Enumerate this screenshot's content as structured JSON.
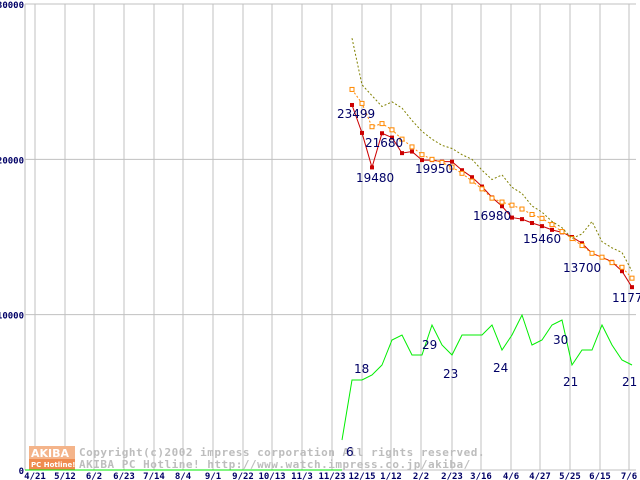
{
  "chart_data": {
    "type": "line",
    "title": "",
    "xlabel": "",
    "ylabel": "",
    "ylim": [
      0,
      30000
    ],
    "yticks": [
      "0",
      "10000",
      "20000",
      "30000"
    ],
    "ytick_values": [
      0,
      10000,
      20000,
      30000
    ],
    "x_tick_labels": [
      "4/21",
      "5/12",
      "6/2",
      "6/23",
      "7/14",
      "8/4",
      "9/1",
      "9/22",
      "10/13",
      "11/3",
      "11/23",
      "12/15",
      "1/12",
      "2/2",
      "2/23",
      "3/16",
      "4/6",
      "4/27",
      "5/25",
      "6/15",
      "7/6"
    ],
    "grid": true,
    "x_week_index_start": 33,
    "series": [
      {
        "name": "average-price",
        "color": "#cc0000",
        "marker": "filled-square",
        "values": [
          23499,
          21700,
          19480,
          21680,
          21400,
          20400,
          20500,
          19950,
          19950,
          19850,
          19850,
          19300,
          18850,
          18250,
          17550,
          16980,
          16250,
          16150,
          15900,
          15700,
          15460,
          15300,
          15000,
          14600,
          13950,
          13700,
          13400,
          12800,
          11770
        ]
      },
      {
        "name": "orange-dotted",
        "color": "#ff8800",
        "marker": "open-square",
        "values": [
          24500,
          23600,
          22100,
          22300,
          21900,
          21300,
          20800,
          20300,
          20000,
          19800,
          19500,
          19100,
          18600,
          18100,
          17500,
          17250,
          17050,
          16800,
          16450,
          16200,
          15800,
          15350,
          14900,
          14450,
          13950,
          13700,
          13350,
          13050,
          12350
        ]
      },
      {
        "name": "olive-dotted",
        "color": "#808000",
        "marker": "none",
        "values": [
          27800,
          24800,
          24100,
          23400,
          23700,
          23300,
          22500,
          21800,
          21300,
          20900,
          20700,
          20300,
          20000,
          19300,
          18700,
          19000,
          18200,
          17800,
          17000,
          16600,
          16000,
          15600,
          14900,
          15200,
          16000,
          14700,
          14300,
          14000,
          12800
        ]
      },
      {
        "name": "shop-count",
        "color": "#00ee00",
        "marker": "none",
        "labels_on_points": true,
        "values": [
          6,
          18,
          18,
          19,
          21,
          26,
          27,
          23,
          23,
          29,
          25,
          23,
          27,
          27,
          27,
          29,
          24,
          27,
          31,
          25,
          26,
          29,
          30,
          21,
          24,
          24,
          29,
          25,
          22,
          21
        ]
      }
    ],
    "annotations": [
      {
        "series": "average-price",
        "text": "23499"
      },
      {
        "series": "average-price",
        "text": "21680"
      },
      {
        "series": "average-price",
        "text": "19480"
      },
      {
        "series": "average-price",
        "text": "19950"
      },
      {
        "series": "average-price",
        "text": "16980"
      },
      {
        "series": "average-price",
        "text": "15460"
      },
      {
        "series": "average-price",
        "text": "13700"
      },
      {
        "series": "average-price",
        "text": "11770"
      },
      {
        "series": "shop-count",
        "text": "6"
      },
      {
        "series": "shop-count",
        "text": "18"
      },
      {
        "series": "shop-count",
        "text": "29"
      },
      {
        "series": "shop-count",
        "text": "23"
      },
      {
        "series": "shop-count",
        "text": "24"
      },
      {
        "series": "shop-count",
        "text": "30"
      },
      {
        "series": "shop-count",
        "text": "21"
      },
      {
        "series": "shop-count",
        "text": "21"
      }
    ]
  },
  "watermark": {
    "logo_top": "AKIBA",
    "logo_bottom": "PC Hotline!",
    "line1": "Copyright(c)2002 impress corporation All rights reserved.",
    "line2": "AKIBA PC Hotline!  http://www.watch.impress.co.jp/akiba/"
  }
}
